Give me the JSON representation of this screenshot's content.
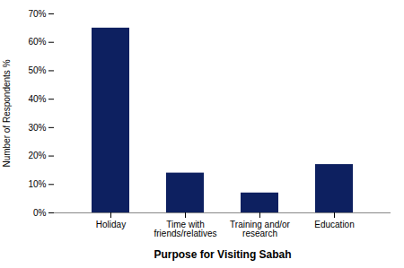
{
  "chart_data": {
    "type": "bar",
    "categories": [
      "Holiday",
      "Time with\nfriends/relatives",
      "Training and/or\nresearch",
      "Education"
    ],
    "values": [
      65,
      14,
      7,
      17
    ],
    "color": "#0d2060",
    "xlabel": "Purpose for Visiting Sabah",
    "ylabel": "Number of Respondents %",
    "ylim": [
      0,
      70
    ],
    "yticks": [
      {
        "value": 0,
        "label": "0%"
      },
      {
        "value": 10,
        "label": "10%"
      },
      {
        "value": 20,
        "label": "20%"
      },
      {
        "value": 30,
        "label": "30%"
      },
      {
        "value": 40,
        "label": "40%"
      },
      {
        "value": 50,
        "label": "50%"
      },
      {
        "value": 60,
        "label": "60%"
      },
      {
        "value": 70,
        "label": "70%"
      }
    ],
    "grid": false
  }
}
